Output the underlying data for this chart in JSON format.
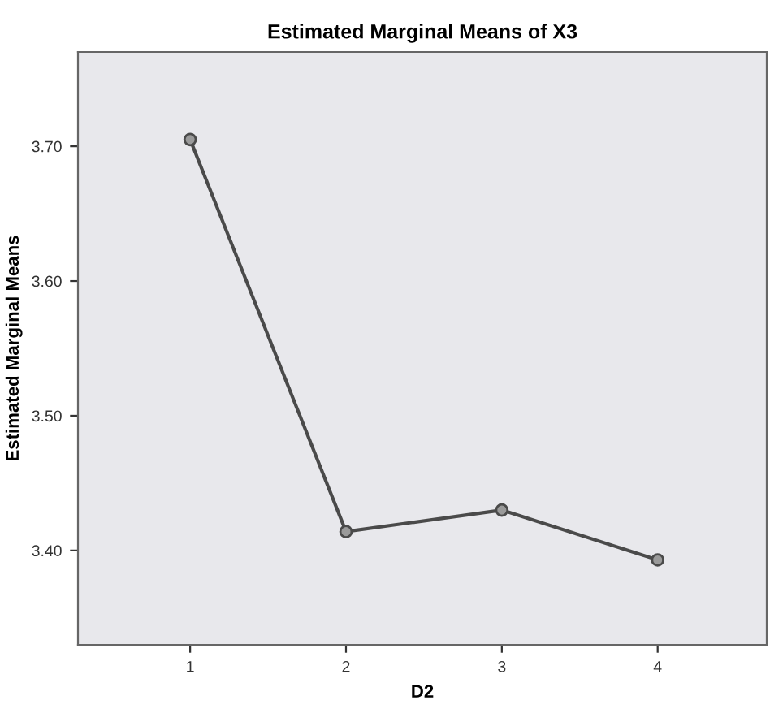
{
  "chart_data": {
    "type": "line",
    "title": "Estimated Marginal Means of X3",
    "xlabel": "D2",
    "ylabel": "Estimated Marginal Means",
    "categories": [
      "1",
      "2",
      "3",
      "4"
    ],
    "series": [
      {
        "color": "#4a4a4a",
        "values": [
          3.705,
          3.414,
          3.43,
          3.393
        ]
      }
    ],
    "ylim": [
      3.33,
      3.77
    ],
    "yticks": [
      {
        "value": 3.4,
        "label": "3.40"
      },
      {
        "value": 3.5,
        "label": "3.50"
      },
      {
        "value": 3.6,
        "label": "3.60"
      },
      {
        "value": 3.7,
        "label": "3.70"
      }
    ],
    "marker": "circle",
    "line_style": "solid",
    "grid": false,
    "legend": false
  }
}
